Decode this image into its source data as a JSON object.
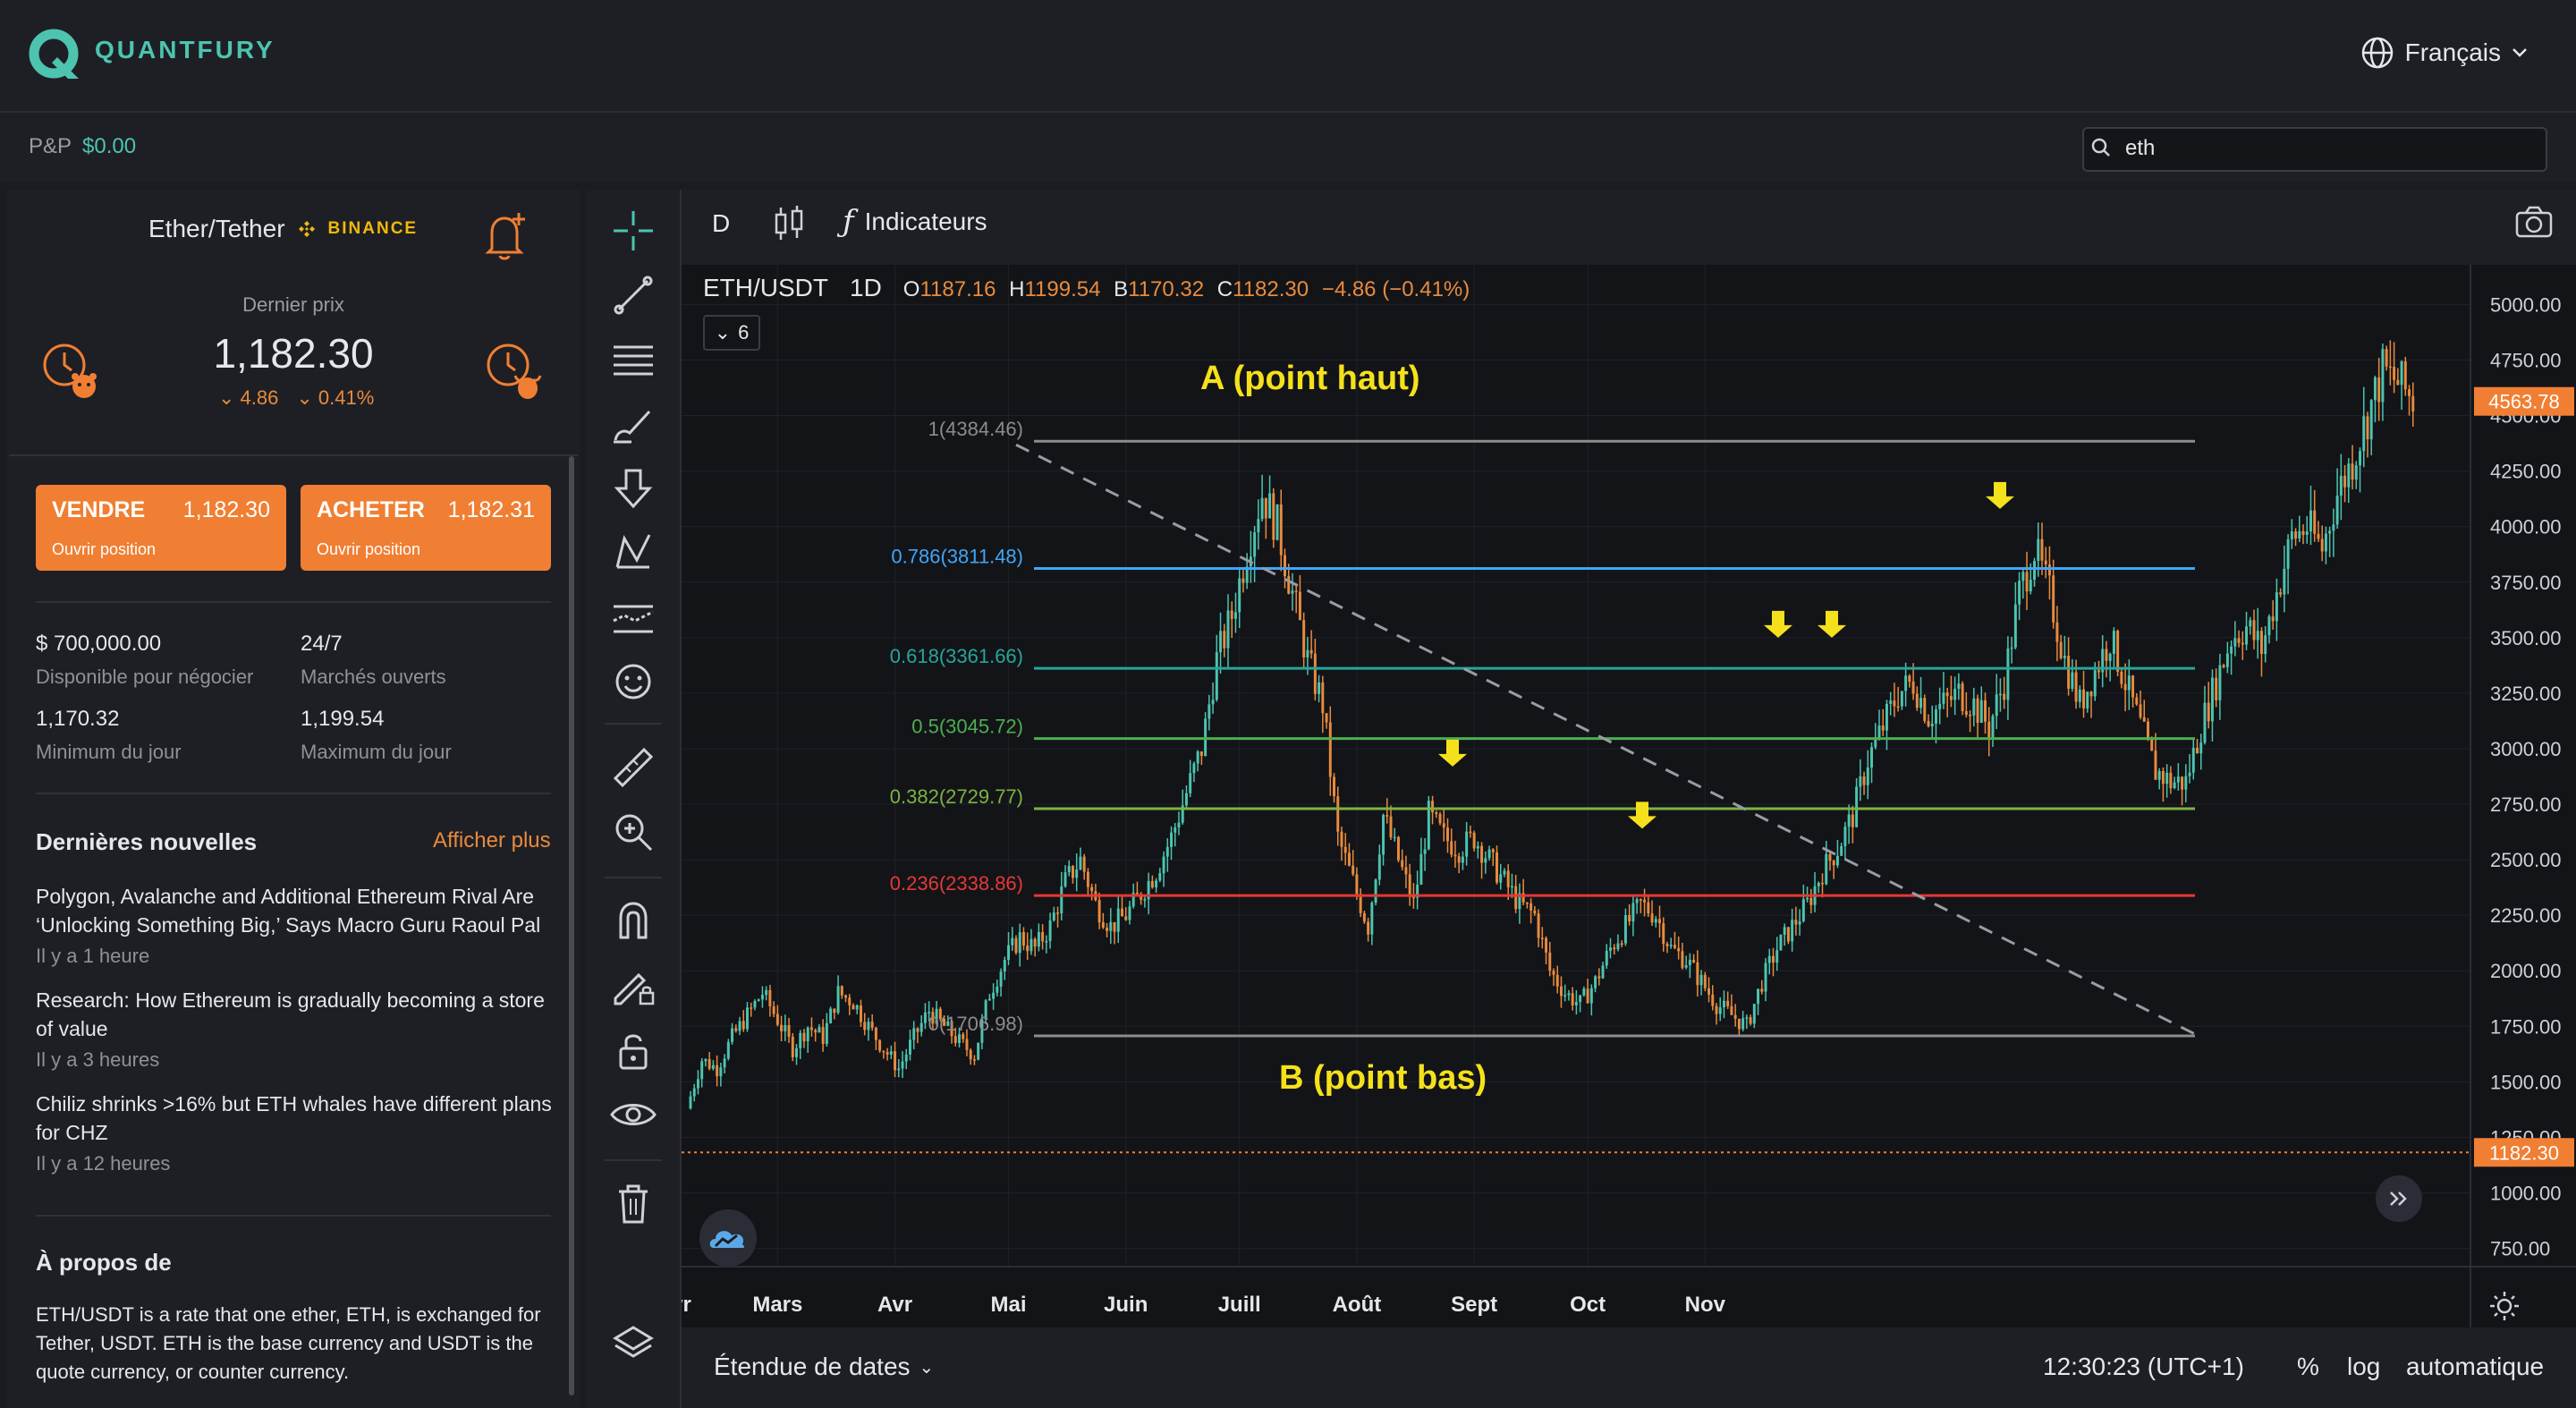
{
  "header": {
    "brand": "QUANTFURY",
    "language": "Français"
  },
  "pnl": {
    "label": "P&P",
    "value": "$0.00"
  },
  "search": {
    "value": "eth"
  },
  "instrument": {
    "title": "Ether/Tether",
    "exchange": "BINANCE",
    "last_price_label": "Dernier prix",
    "last_price": "1,182.30",
    "change_abs": "4.86",
    "change_pct": "0.41%"
  },
  "trade": {
    "sell_label": "VENDRE",
    "sell_price": "1,182.30",
    "sell_sub": "Ouvrir position",
    "buy_label": "ACHETER",
    "buy_price": "1,182.31",
    "buy_sub": "Ouvrir position"
  },
  "stats": {
    "available_value": "$ 700,000.00",
    "available_label": "Disponible pour négocier",
    "markets_value": "24/7",
    "markets_label": "Marchés ouverts",
    "min_value": "1,170.32",
    "min_label": "Minimum du jour",
    "max_value": "1,199.54",
    "max_label": "Maximum du jour"
  },
  "news": {
    "heading": "Dernières nouvelles",
    "more": "Afficher plus",
    "items": [
      {
        "title": "Polygon, Avalanche and Additional Ethereum Rival Are ‘Unlocking Something Big,’ Says Macro Guru Raoul Pal",
        "ago": "Il y a 1 heure"
      },
      {
        "title": "Research: How Ethereum is gradually becoming a store of value",
        "ago": "Il y a 3 heures"
      },
      {
        "title": "Chiliz shrinks >16% but ETH whales have different plans for CHZ",
        "ago": "Il y a 12 heures"
      }
    ]
  },
  "about": {
    "heading": "À propos de",
    "text": "ETH/USDT is a rate that one ether, ETH, is exchanged for Tether, USDT. ETH is the base currency and USDT is the quote currency, or counter currency."
  },
  "chart_toolbar": {
    "interval": "D",
    "indicators": "Indicateurs"
  },
  "chart_legend": {
    "symbol": "ETH/USDT",
    "interval": "1D",
    "o_label": "O",
    "open": "1187.16",
    "h_label": "H",
    "high": "1199.54",
    "b_label": "B",
    "low": "1170.32",
    "c_label": "C",
    "close": "1182.30",
    "change": "−4.86 (−0.41%)",
    "indicator_count": "6"
  },
  "chart_footer": {
    "date_range": "Étendue de dates",
    "clock": "12:30:23 (UTC+1)",
    "pct": "%",
    "log": "log",
    "auto": "automatique"
  },
  "annotations": {
    "high": "A (point haut)",
    "low": "B (point bas)"
  },
  "colors": {
    "accent": "#4cc4b0",
    "orange": "#f07f33",
    "up": "#4cc4b0",
    "down": "#e88b3e",
    "fib_0": "#8c8c8c",
    "fib_0236": "#e53935",
    "fib_0382": "#7cb342",
    "fib_05": "#4caf50",
    "fib_0618": "#26a69a",
    "fib_0786": "#42a5f5",
    "annotation": "#f5e11b"
  },
  "chart_data": {
    "type": "candlestick",
    "symbol": "ETH/USDT",
    "ylim": [
      700,
      5050
    ],
    "y_ticks": [
      "750.00",
      "1000.00",
      "1250.00",
      "1500.00",
      "1750.00",
      "2000.00",
      "2250.00",
      "2500.00",
      "2750.00",
      "3000.00",
      "3250.00",
      "3500.00",
      "3750.00",
      "4000.00",
      "4250.00",
      "4500.00",
      "4750.00",
      "5000.00"
    ],
    "x_ticks": [
      "févr",
      "Mars",
      "Avr",
      "Mai",
      "Juin",
      "Juill",
      "Août",
      "Sept",
      "Oct",
      "Nov"
    ],
    "current_price_tag": "1182.30",
    "last_price_tag": "4563.78",
    "fibonacci": [
      {
        "level": "1",
        "value": 4384.46,
        "label": "1(4384.46)"
      },
      {
        "level": "0.786",
        "value": 3811.48,
        "label": "0.786(3811.48)"
      },
      {
        "level": "0.618",
        "value": 3361.66,
        "label": "0.618(3361.66)"
      },
      {
        "level": "0.5",
        "value": 3045.72,
        "label": "0.5(3045.72)"
      },
      {
        "level": "0.382",
        "value": 2729.77,
        "label": "0.382(2729.77)"
      },
      {
        "level": "0.236",
        "value": 2338.86,
        "label": "0.236(2338.86)"
      },
      {
        "level": "0",
        "value": 1706.98,
        "label": "0(1706.98)"
      }
    ],
    "path": [
      [
        0,
        1380
      ],
      [
        4,
        1600
      ],
      [
        8,
        1560
      ],
      [
        12,
        1700
      ],
      [
        16,
        1800
      ],
      [
        20,
        1900
      ],
      [
        24,
        1780
      ],
      [
        28,
        1650
      ],
      [
        32,
        1750
      ],
      [
        36,
        1700
      ],
      [
        40,
        1900
      ],
      [
        44,
        1860
      ],
      [
        48,
        1750
      ],
      [
        52,
        1650
      ],
      [
        56,
        1560
      ],
      [
        60,
        1700
      ],
      [
        64,
        1820
      ],
      [
        68,
        1750
      ],
      [
        72,
        1680
      ],
      [
        76,
        1620
      ],
      [
        80,
        1900
      ],
      [
        84,
        2050
      ],
      [
        88,
        2150
      ],
      [
        92,
        2100
      ],
      [
        96,
        2200
      ],
      [
        100,
        2400
      ],
      [
        104,
        2500
      ],
      [
        108,
        2300
      ],
      [
        112,
        2200
      ],
      [
        116,
        2250
      ],
      [
        120,
        2350
      ],
      [
        124,
        2450
      ],
      [
        128,
        2600
      ],
      [
        132,
        2800
      ],
      [
        136,
        3000
      ],
      [
        140,
        3400
      ],
      [
        144,
        3600
      ],
      [
        148,
        3900
      ],
      [
        152,
        4150
      ],
      [
        156,
        4000
      ],
      [
        160,
        3700
      ],
      [
        164,
        3400
      ],
      [
        168,
        3200
      ],
      [
        172,
        2600
      ],
      [
        176,
        2400
      ],
      [
        180,
        2200
      ],
      [
        184,
        2700
      ],
      [
        188,
        2500
      ],
      [
        192,
        2300
      ],
      [
        196,
        2700
      ],
      [
        200,
        2600
      ],
      [
        204,
        2550
      ],
      [
        208,
        2600
      ],
      [
        212,
        2500
      ],
      [
        216,
        2400
      ],
      [
        220,
        2300
      ],
      [
        224,
        2250
      ],
      [
        228,
        2000
      ],
      [
        232,
        1900
      ],
      [
        236,
        1850
      ],
      [
        240,
        1950
      ],
      [
        244,
        2100
      ],
      [
        248,
        2200
      ],
      [
        252,
        2300
      ],
      [
        256,
        2250
      ],
      [
        260,
        2100
      ],
      [
        264,
        2050
      ],
      [
        268,
        1950
      ],
      [
        272,
        1850
      ],
      [
        276,
        1800
      ],
      [
        280,
        1750
      ],
      [
        284,
        1950
      ],
      [
        288,
        2100
      ],
      [
        292,
        2200
      ],
      [
        296,
        2300
      ],
      [
        300,
        2450
      ],
      [
        304,
        2550
      ],
      [
        308,
        2700
      ],
      [
        312,
        2950
      ],
      [
        316,
        3100
      ],
      [
        320,
        3250
      ],
      [
        324,
        3300
      ],
      [
        328,
        3150
      ],
      [
        332,
        3200
      ],
      [
        336,
        3250
      ],
      [
        340,
        3200
      ],
      [
        344,
        3100
      ],
      [
        348,
        3300
      ],
      [
        352,
        3700
      ],
      [
        356,
        3900
      ],
      [
        360,
        3700
      ],
      [
        364,
        3400
      ],
      [
        368,
        3200
      ],
      [
        372,
        3350
      ],
      [
        376,
        3500
      ],
      [
        380,
        3300
      ],
      [
        384,
        3100
      ],
      [
        388,
        2900
      ],
      [
        392,
        2850
      ],
      [
        396,
        2850
      ],
      [
        400,
        3100
      ],
      [
        404,
        3300
      ],
      [
        408,
        3500
      ],
      [
        412,
        3550
      ],
      [
        416,
        3450
      ],
      [
        420,
        3700
      ],
      [
        424,
        3950
      ],
      [
        428,
        4000
      ],
      [
        432,
        3900
      ],
      [
        436,
        4150
      ],
      [
        440,
        4300
      ],
      [
        444,
        4500
      ],
      [
        448,
        4700
      ],
      [
        452,
        4650
      ],
      [
        456,
        4570
      ]
    ]
  }
}
